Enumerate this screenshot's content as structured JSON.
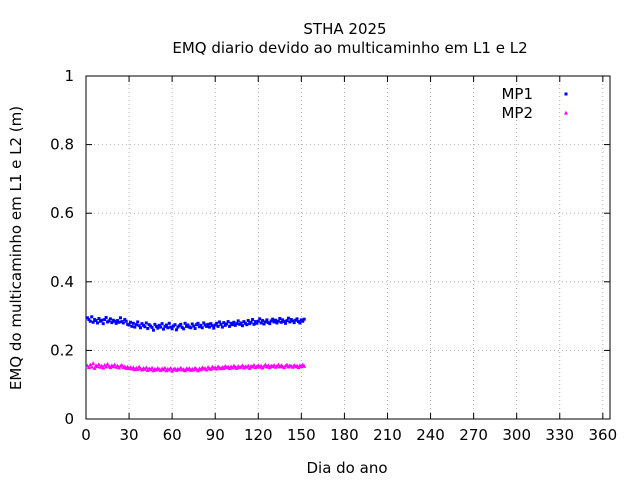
{
  "chart_data": {
    "type": "scatter",
    "title": "STHA 2025",
    "subtitle": "EMQ diario devido ao multicaminho em L1 e L2",
    "xlabel": "Dia do ano",
    "ylabel": "EMQ do multicaminho em L1 e L2 (m)",
    "xlim": [
      0,
      365
    ],
    "ylim": [
      0,
      1
    ],
    "x_ticks": [
      0,
      30,
      60,
      90,
      120,
      150,
      180,
      210,
      240,
      270,
      300,
      330,
      360
    ],
    "y_ticks": [
      0,
      0.2,
      0.4,
      0.6,
      0.8,
      1
    ],
    "y_tick_labels": [
      "0",
      "0.2",
      "0.4",
      "0.6",
      "0.8",
      "1"
    ],
    "grid": true,
    "legend_position": "top-right",
    "series": [
      {
        "name": "MP1",
        "color": "#0000ff",
        "marker": "square",
        "x": [
          1,
          2,
          3,
          4,
          5,
          6,
          7,
          8,
          9,
          10,
          11,
          12,
          13,
          14,
          15,
          16,
          17,
          18,
          19,
          20,
          21,
          22,
          23,
          24,
          25,
          26,
          27,
          28,
          29,
          30,
          31,
          32,
          33,
          34,
          35,
          36,
          37,
          38,
          39,
          40,
          41,
          42,
          43,
          44,
          45,
          46,
          47,
          48,
          49,
          50,
          51,
          52,
          53,
          54,
          55,
          56,
          57,
          58,
          59,
          60,
          61,
          62,
          63,
          64,
          65,
          66,
          67,
          68,
          69,
          70,
          71,
          72,
          73,
          74,
          75,
          76,
          77,
          78,
          79,
          80,
          81,
          82,
          83,
          84,
          85,
          86,
          87,
          88,
          89,
          90,
          91,
          92,
          93,
          94,
          95,
          96,
          97,
          98,
          99,
          100,
          101,
          102,
          103,
          104,
          105,
          106,
          107,
          108,
          109,
          110,
          111,
          112,
          113,
          114,
          115,
          116,
          117,
          118,
          119,
          120,
          121,
          122,
          123,
          124,
          125,
          126,
          127,
          128,
          129,
          130,
          131,
          132,
          133,
          134,
          135,
          136,
          137,
          138,
          139,
          140,
          141,
          142,
          143,
          144,
          145,
          146,
          147,
          148,
          149,
          150,
          151,
          152
        ],
        "y": [
          0.295,
          0.29,
          0.285,
          0.298,
          0.282,
          0.29,
          0.287,
          0.28,
          0.293,
          0.285,
          0.288,
          0.278,
          0.29,
          0.296,
          0.283,
          0.286,
          0.292,
          0.281,
          0.288,
          0.285,
          0.279,
          0.287,
          0.282,
          0.295,
          0.284,
          0.28,
          0.29,
          0.285,
          0.276,
          0.274,
          0.282,
          0.27,
          0.279,
          0.268,
          0.275,
          0.283,
          0.272,
          0.266,
          0.278,
          0.273,
          0.269,
          0.28,
          0.264,
          0.275,
          0.271,
          0.267,
          0.259,
          0.276,
          0.27,
          0.265,
          0.273,
          0.268,
          0.278,
          0.262,
          0.27,
          0.274,
          0.266,
          0.279,
          0.268,
          0.263,
          0.271,
          0.275,
          0.26,
          0.268,
          0.272,
          0.276,
          0.267,
          0.263,
          0.279,
          0.27,
          0.274,
          0.268,
          0.266,
          0.277,
          0.271,
          0.264,
          0.275,
          0.279,
          0.269,
          0.273,
          0.266,
          0.28,
          0.274,
          0.27,
          0.276,
          0.268,
          0.278,
          0.272,
          0.265,
          0.274,
          0.279,
          0.27,
          0.283,
          0.276,
          0.268,
          0.281,
          0.273,
          0.277,
          0.284,
          0.27,
          0.279,
          0.275,
          0.282,
          0.273,
          0.278,
          0.286,
          0.276,
          0.28,
          0.272,
          0.284,
          0.279,
          0.275,
          0.287,
          0.278,
          0.282,
          0.29,
          0.276,
          0.284,
          0.279,
          0.285,
          0.292,
          0.28,
          0.287,
          0.277,
          0.283,
          0.289,
          0.281,
          0.278,
          0.286,
          0.291,
          0.283,
          0.288,
          0.28,
          0.285,
          0.293,
          0.282,
          0.289,
          0.284,
          0.279,
          0.287,
          0.294,
          0.283,
          0.29,
          0.286,
          0.281,
          0.288,
          0.292,
          0.284,
          0.28,
          0.289,
          0.285,
          0.291
        ]
      },
      {
        "name": "MP2",
        "color": "#ff00ff",
        "marker": "triangle",
        "x": [
          1,
          2,
          3,
          4,
          5,
          6,
          7,
          8,
          9,
          10,
          11,
          12,
          13,
          14,
          15,
          16,
          17,
          18,
          19,
          20,
          21,
          22,
          23,
          24,
          25,
          26,
          27,
          28,
          29,
          30,
          31,
          32,
          33,
          34,
          35,
          36,
          37,
          38,
          39,
          40,
          41,
          42,
          43,
          44,
          45,
          46,
          47,
          48,
          49,
          50,
          51,
          52,
          53,
          54,
          55,
          56,
          57,
          58,
          59,
          60,
          61,
          62,
          63,
          64,
          65,
          66,
          67,
          68,
          69,
          70,
          71,
          72,
          73,
          74,
          75,
          76,
          77,
          78,
          79,
          80,
          81,
          82,
          83,
          84,
          85,
          86,
          87,
          88,
          89,
          90,
          91,
          92,
          93,
          94,
          95,
          96,
          97,
          98,
          99,
          100,
          101,
          102,
          103,
          104,
          105,
          106,
          107,
          108,
          109,
          110,
          111,
          112,
          113,
          114,
          115,
          116,
          117,
          118,
          119,
          120,
          121,
          122,
          123,
          124,
          125,
          126,
          127,
          128,
          129,
          130,
          131,
          132,
          133,
          134,
          135,
          136,
          137,
          138,
          139,
          140,
          141,
          142,
          143,
          144,
          145,
          146,
          147,
          148,
          149,
          150,
          151,
          152
        ],
        "y": [
          0.155,
          0.15,
          0.158,
          0.152,
          0.162,
          0.148,
          0.156,
          0.153,
          0.159,
          0.151,
          0.155,
          0.149,
          0.157,
          0.152,
          0.16,
          0.154,
          0.15,
          0.156,
          0.153,
          0.158,
          0.151,
          0.155,
          0.149,
          0.154,
          0.157,
          0.15,
          0.153,
          0.148,
          0.152,
          0.147,
          0.151,
          0.146,
          0.15,
          0.144,
          0.149,
          0.145,
          0.152,
          0.147,
          0.143,
          0.148,
          0.145,
          0.15,
          0.142,
          0.147,
          0.144,
          0.149,
          0.141,
          0.146,
          0.143,
          0.148,
          0.145,
          0.142,
          0.147,
          0.144,
          0.149,
          0.141,
          0.146,
          0.143,
          0.148,
          0.14,
          0.145,
          0.147,
          0.142,
          0.146,
          0.144,
          0.149,
          0.143,
          0.145,
          0.141,
          0.147,
          0.144,
          0.148,
          0.142,
          0.146,
          0.143,
          0.149,
          0.145,
          0.141,
          0.147,
          0.144,
          0.15,
          0.146,
          0.148,
          0.143,
          0.151,
          0.147,
          0.145,
          0.152,
          0.148,
          0.15,
          0.146,
          0.153,
          0.149,
          0.147,
          0.151,
          0.148,
          0.154,
          0.15,
          0.152,
          0.147,
          0.153,
          0.149,
          0.155,
          0.151,
          0.148,
          0.154,
          0.15,
          0.152,
          0.156,
          0.149,
          0.153,
          0.151,
          0.155,
          0.148,
          0.154,
          0.152,
          0.157,
          0.15,
          0.153,
          0.156,
          0.151,
          0.155,
          0.149,
          0.154,
          0.158,
          0.152,
          0.156,
          0.15,
          0.155,
          0.153,
          0.157,
          0.151,
          0.154,
          0.158,
          0.152,
          0.156,
          0.153,
          0.15,
          0.155,
          0.158,
          0.152,
          0.156,
          0.154,
          0.151,
          0.157,
          0.153,
          0.155,
          0.15,
          0.156,
          0.153,
          0.158,
          0.154
        ]
      }
    ]
  }
}
